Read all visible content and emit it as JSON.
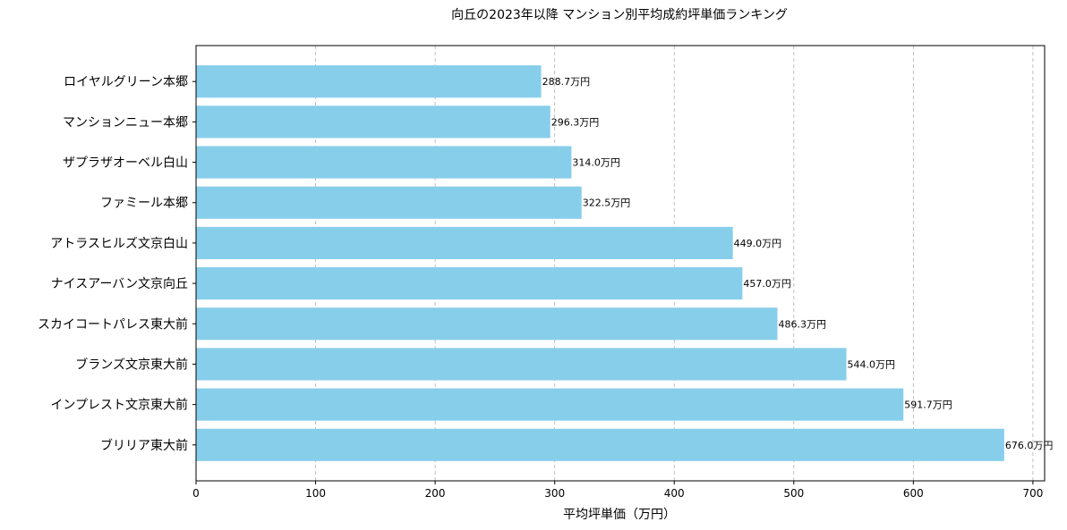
{
  "chart_data": {
    "type": "bar",
    "orientation": "horizontal",
    "title": "向丘の2023年以降 マンション別平均成約坪単価ランキング",
    "xlabel": "平均坪単価（万円）",
    "ylabel": "",
    "xlim": [
      0,
      709.8
    ],
    "xticks": [
      0,
      100,
      200,
      300,
      400,
      500,
      600,
      700
    ],
    "grid": "x, dashed",
    "bar_color": "#87CEEB",
    "label_suffix": "万円",
    "categories": [
      "ロイヤルグリーン本郷",
      "マンションニュー本郷",
      "ザプラザオーベル白山",
      "ファミール本郷",
      "アトラスヒルズ文京白山",
      "ナイスアーバン文京向丘",
      "スカイコートパレス東大前",
      "ブランズ文京東大前",
      "インプレスト文京東大前",
      "ブリリア東大前"
    ],
    "values": [
      288.7,
      296.3,
      314.0,
      322.5,
      449.0,
      457.0,
      486.3,
      544.0,
      591.7,
      676.0
    ],
    "data_labels": [
      "288.7万円",
      "296.3万円",
      "314.0万円",
      "322.5万円",
      "449.0万円",
      "457.0万円",
      "486.3万円",
      "544.0万円",
      "591.7万円",
      "676.0万円"
    ]
  }
}
